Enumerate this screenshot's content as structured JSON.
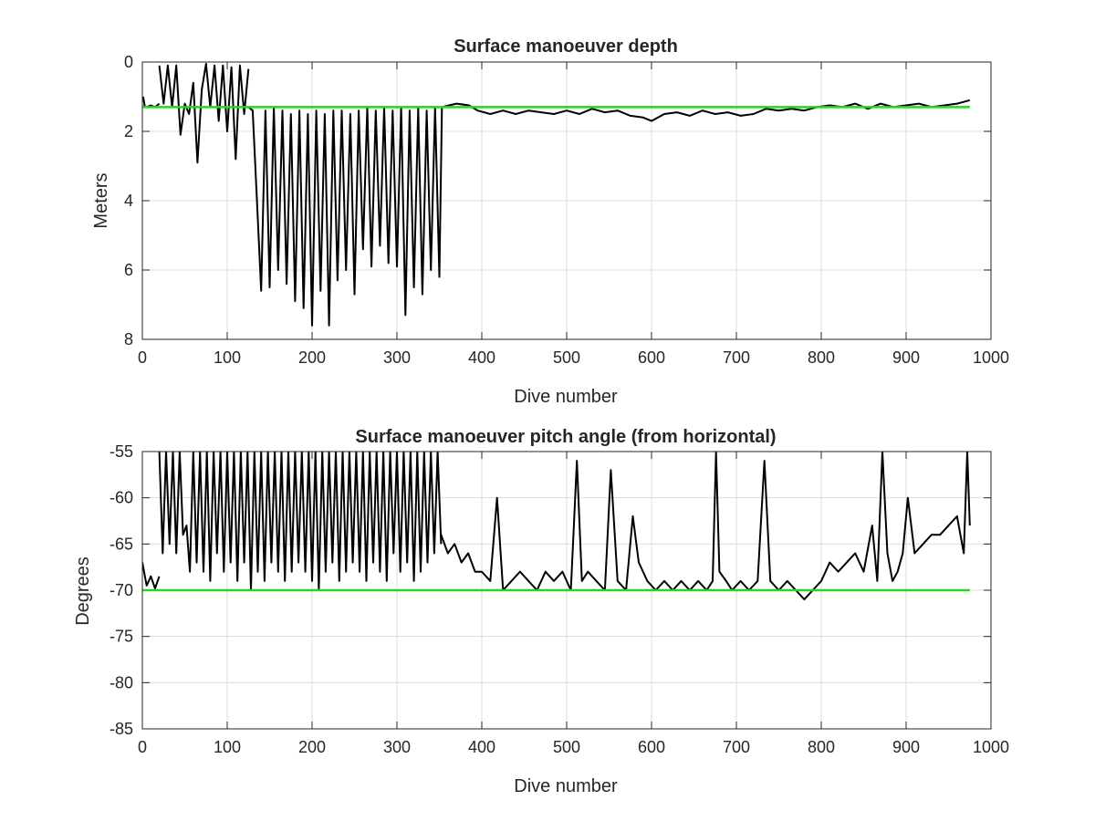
{
  "chart_data": [
    {
      "type": "line",
      "title": "Surface manoeuver depth",
      "xlabel": "Dive number",
      "ylabel": "Meters",
      "xlim": [
        0,
        1000
      ],
      "ylim": [
        0,
        8
      ],
      "y_reversed": true,
      "grid": true,
      "xticks": [
        "0",
        "100",
        "200",
        "300",
        "400",
        "500",
        "600",
        "700",
        "800",
        "900",
        "1000"
      ],
      "yticks": [
        "0",
        "2",
        "4",
        "6",
        "8"
      ],
      "series": [
        {
          "color": "#000000",
          "segments": [
            {
              "x": [
                1,
                3
              ],
              "y": [
                1.0,
                1.3
              ]
            },
            {
              "x": [
                5,
                10,
                15,
                20
              ],
              "y": [
                1.3,
                1.25,
                1.3,
                1.2
              ]
            },
            {
              "x": [
                20,
                25,
                30,
                35,
                40,
                45,
                50,
                55,
                60,
                65,
                70,
                75,
                80,
                85,
                90,
                95,
                100,
                105,
                110,
                115,
                120,
                125
              ],
              "y": [
                0.1,
                1.2,
                0.1,
                1.3,
                0.1,
                2.1,
                1.2,
                1.5,
                0.6,
                2.9,
                0.8,
                0.05,
                1.3,
                0.1,
                1.7,
                0.1,
                2.0,
                0.15,
                2.8,
                0.1,
                1.5,
                0.2
              ]
            },
            {
              "x": [
                125,
                130,
                135,
                140,
                145,
                150,
                155,
                160,
                165,
                170,
                175,
                180,
                185,
                190,
                195,
                200,
                205,
                210,
                215,
                220,
                225,
                230,
                235,
                240,
                245,
                250,
                255,
                260,
                265,
                270,
                275,
                280,
                285,
                290,
                295,
                300,
                305,
                310,
                315,
                320,
                325,
                330,
                335,
                340,
                345,
                350,
                353
              ],
              "y": [
                1.3,
                1.4,
                4.0,
                6.6,
                1.4,
                6.5,
                1.3,
                6.0,
                1.4,
                6.4,
                1.5,
                6.9,
                1.4,
                7.1,
                1.5,
                7.6,
                1.4,
                6.6,
                1.5,
                7.6,
                1.4,
                6.3,
                1.4,
                6.0,
                1.5,
                6.7,
                1.4,
                5.4,
                1.3,
                5.9,
                1.4,
                5.3,
                1.3,
                5.8,
                1.4,
                5.9,
                1.3,
                7.3,
                1.4,
                6.5,
                1.3,
                6.7,
                1.4,
                6.0,
                1.3,
                6.2,
                1.3
              ]
            },
            {
              "x": [
                353,
                370,
                385,
                395,
                410,
                425,
                440,
                455,
                470,
                485,
                500,
                515,
                530,
                545,
                560,
                575,
                590,
                600,
                615,
                630,
                645,
                660,
                675,
                690,
                705,
                720,
                735,
                750,
                765,
                780,
                795,
                810,
                825,
                840,
                855,
                870,
                885,
                900,
                915,
                930,
                945,
                960,
                968,
                975
              ],
              "y": [
                1.3,
                1.2,
                1.25,
                1.4,
                1.5,
                1.4,
                1.5,
                1.4,
                1.45,
                1.5,
                1.4,
                1.5,
                1.35,
                1.45,
                1.4,
                1.55,
                1.6,
                1.7,
                1.5,
                1.45,
                1.55,
                1.4,
                1.5,
                1.45,
                1.55,
                1.5,
                1.35,
                1.4,
                1.35,
                1.4,
                1.3,
                1.25,
                1.3,
                1.2,
                1.35,
                1.2,
                1.3,
                1.25,
                1.2,
                1.3,
                1.25,
                1.2,
                1.15,
                1.1
              ]
            }
          ]
        },
        {
          "color": "#2cd02c",
          "segments": [
            {
              "x": [
                0,
                975
              ],
              "y": [
                1.3,
                1.3
              ]
            }
          ]
        }
      ]
    },
    {
      "type": "line",
      "title": "Surface manoeuver pitch angle (from horizontal)",
      "xlabel": "Dive number",
      "ylabel": "Degrees",
      "xlim": [
        0,
        1000
      ],
      "ylim": [
        -85,
        -55
      ],
      "y_reversed": false,
      "grid": true,
      "xticks": [
        "0",
        "100",
        "200",
        "300",
        "400",
        "500",
        "600",
        "700",
        "800",
        "900",
        "1000"
      ],
      "yticks": [
        "-55",
        "-60",
        "-65",
        "-70",
        "-75",
        "-80",
        "-85"
      ],
      "series": [
        {
          "color": "#000000",
          "segments": [
            {
              "x": [
                0,
                5,
                10,
                15,
                20
              ],
              "y": [
                -67,
                -69.5,
                -68.5,
                -69.8,
                -68.5
              ]
            },
            {
              "x": [
                20,
                24,
                28,
                32,
                36,
                40,
                44,
                48,
                52,
                56,
                60,
                64,
                68,
                72,
                76,
                80,
                84,
                88,
                92,
                96,
                100,
                104,
                108,
                112,
                116,
                120,
                124,
                128,
                132,
                136,
                140,
                144,
                148,
                152,
                156,
                160,
                164,
                168,
                172,
                176,
                180,
                184,
                188,
                192,
                196,
                200,
                204,
                208,
                212,
                216,
                220,
                224,
                228,
                232,
                236,
                240,
                244,
                248,
                252,
                256,
                260,
                264,
                268,
                272,
                276,
                280,
                284,
                288,
                292,
                296,
                300,
                304,
                308,
                312,
                316,
                320,
                324,
                328,
                332,
                336,
                340,
                344,
                348,
                352
              ],
              "y": [
                -55,
                -66,
                -55,
                -65,
                -55,
                -66,
                -55,
                -64,
                -63,
                -68,
                -55,
                -67,
                -55,
                -68,
                -55,
                -69,
                -55,
                -66,
                -55,
                -68,
                -55,
                -67,
                -55,
                -69,
                -55,
                -67,
                -55,
                -70,
                -55,
                -68,
                -55,
                -69,
                -55,
                -67,
                -55,
                -68,
                -55,
                -69,
                -55,
                -68,
                -55,
                -67,
                -55,
                -68,
                -55,
                -69,
                -55,
                -70,
                -55,
                -68,
                -55,
                -67,
                -55,
                -69,
                -55,
                -68,
                -55,
                -67,
                -55,
                -68,
                -55,
                -69,
                -55,
                -67,
                -55,
                -68,
                -55,
                -69,
                -55,
                -66,
                -55,
                -68,
                -55,
                -67,
                -55,
                -69,
                -55,
                -68,
                -55,
                -67,
                -55,
                -66,
                -55,
                -65
              ]
            },
            {
              "x": [
                352,
                360,
                368,
                376,
                384,
                392,
                400,
                410,
                418,
                425,
                435,
                445,
                455,
                465,
                475,
                485,
                495,
                505,
                512,
                518,
                525,
                535,
                545,
                552,
                560,
                570,
                578,
                585,
                595,
                605,
                615,
                625,
                635,
                645,
                655,
                665,
                672,
                676,
                680,
                688,
                695,
                705,
                715,
                725,
                733,
                740,
                750,
                760,
                770,
                780,
                790,
                800,
                810,
                820,
                830,
                840,
                850,
                860,
                866,
                872,
                878,
                884,
                890,
                896,
                902,
                910,
                920,
                930,
                940,
                950,
                960,
                968,
                972,
                975
              ],
              "y": [
                -64,
                -66,
                -65,
                -67,
                -66,
                -68,
                -68,
                -69,
                -60,
                -70,
                -69,
                -68,
                -69,
                -70,
                -68,
                -69,
                -68,
                -70,
                -56,
                -69,
                -68,
                -69,
                -70,
                -57,
                -69,
                -70,
                -62,
                -67,
                -69,
                -70,
                -69,
                -70,
                -69,
                -70,
                -69,
                -70,
                -69,
                -55,
                -68,
                -69,
                -70,
                -69,
                -70,
                -69,
                -56,
                -69,
                -70,
                -69,
                -70,
                -71,
                -70,
                -69,
                -67,
                -68,
                -67,
                -66,
                -68,
                -63,
                -69,
                -55,
                -66,
                -69,
                -68,
                -66,
                -60,
                -66,
                -65,
                -64,
                -64,
                -63,
                -62,
                -66,
                -55,
                -63
              ]
            }
          ]
        },
        {
          "color": "#2cd02c",
          "segments": [
            {
              "x": [
                0,
                975
              ],
              "y": [
                -70,
                -70
              ]
            }
          ]
        }
      ]
    }
  ]
}
